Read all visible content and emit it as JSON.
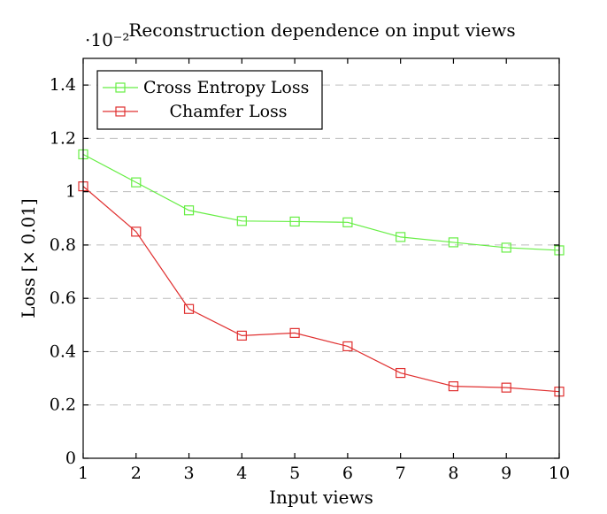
{
  "chart_data": {
    "type": "line",
    "title": "Reconstruction dependence on input views",
    "scale_label": "·10⁻²",
    "xlabel": "Input views",
    "ylabel": "Loss [× 0.01]",
    "x": [
      1,
      2,
      3,
      4,
      5,
      6,
      7,
      8,
      9,
      10
    ],
    "xlim": [
      1,
      10
    ],
    "ylim": [
      0,
      1.5
    ],
    "yticks": [
      0,
      0.2,
      0.4,
      0.6,
      0.8,
      1,
      1.2,
      1.4
    ],
    "ytick_labels": [
      "0",
      "0.2",
      "0.4",
      "0.6",
      "0.8",
      "1",
      "1.2",
      "1.4"
    ],
    "xticks": [
      1,
      2,
      3,
      4,
      5,
      6,
      7,
      8,
      9,
      10
    ],
    "xtick_labels": [
      "1",
      "2",
      "3",
      "4",
      "5",
      "6",
      "7",
      "8",
      "9",
      "10"
    ],
    "grid": "horizontal-dashed",
    "legend_position": "top-left",
    "series": [
      {
        "name": "Cross Entropy Loss",
        "color": "#66ee44",
        "marker": "open-square",
        "values": [
          1.14,
          1.035,
          0.93,
          0.89,
          0.888,
          0.885,
          0.83,
          0.81,
          0.79,
          0.78
        ]
      },
      {
        "name": "Chamfer Loss",
        "color": "#e03030",
        "marker": "open-square",
        "values": [
          1.02,
          0.85,
          0.56,
          0.46,
          0.47,
          0.42,
          0.32,
          0.27,
          0.265,
          0.25
        ]
      }
    ]
  }
}
